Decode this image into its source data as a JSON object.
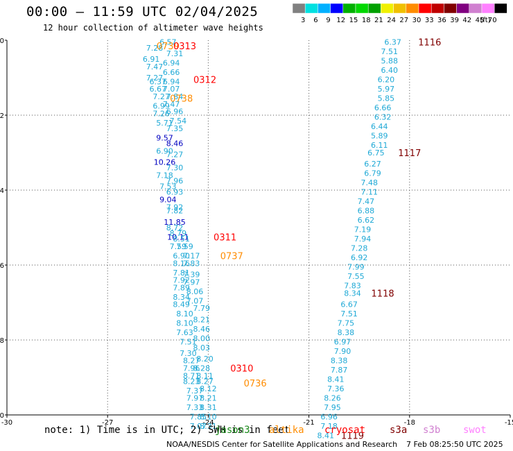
{
  "header": {
    "title": "00:00 — 11:59 UTC 02/04/2025",
    "subtitle": "12 hour collection of altimeter wave heights"
  },
  "colorbar": {
    "colors": [
      "#808080",
      "#00e0e0",
      "#00b0ff",
      "#0000ff",
      "#00b000",
      "#00d800",
      "#00a000",
      "#f0f000",
      "#f0c000",
      "#ff8c00",
      "#ff0000",
      "#c00000",
      "#800000",
      "#800080",
      "#d080d0",
      "#ff80ff",
      "#000000"
    ],
    "labels": [
      "3",
      "6",
      "9",
      "12",
      "15",
      "18",
      "21",
      "24",
      "27",
      "30",
      "33",
      "36",
      "39",
      "42",
      "45",
      "70",
      "(ft)"
    ]
  },
  "chart_data": {
    "type": "scatter",
    "xlabel": "",
    "ylabel": "",
    "xlim": [
      -30,
      -15
    ],
    "ylim": [
      -10,
      0
    ],
    "xticks": [
      "-30",
      "-27",
      "-24",
      "-21",
      "-18",
      "-15"
    ],
    "yticks": [
      "0",
      "-2",
      "-4",
      "-6",
      "-8",
      "-10"
    ],
    "grid": true,
    "tracks": [
      {
        "label": "0739",
        "x": -25.2,
        "y": -0.15,
        "label_color": "#ff8c00",
        "points": [
          {
            "x": -25.2,
            "y": -0.05,
            "v": "6.57"
          },
          {
            "x": -25.6,
            "y": -0.2,
            "v": "7.28"
          },
          {
            "x": -25.0,
            "y": -0.35,
            "v": "7.31"
          },
          {
            "x": -25.7,
            "y": -0.5,
            "v": "6.91"
          },
          {
            "x": -25.1,
            "y": -0.6,
            "v": "6.94"
          },
          {
            "x": -25.6,
            "y": -0.7,
            "v": "7.47"
          },
          {
            "x": -25.1,
            "y": -0.85,
            "v": "6.66"
          },
          {
            "x": -25.6,
            "y": -1.0,
            "v": "7.27"
          }
        ]
      },
      {
        "label": "0313",
        "x": -24.7,
        "y": -0.15,
        "label_color": "#ff0000",
        "points": []
      },
      {
        "label": "0312",
        "x": -24.1,
        "y": -1.05,
        "label_color": "#ff0000",
        "points": [
          {
            "x": -25.5,
            "y": -1.1,
            "v": "6.37"
          },
          {
            "x": -25.1,
            "y": -1.1,
            "v": "6.94"
          },
          {
            "x": -25.5,
            "y": -1.3,
            "v": "6.67"
          },
          {
            "x": -25.1,
            "y": -1.3,
            "v": "7.07"
          }
        ]
      },
      {
        "label": "0738",
        "x": -24.8,
        "y": -1.55,
        "label_color": "#ff8c00",
        "points": [
          {
            "x": -25.4,
            "y": -1.5,
            "v": "7.27"
          },
          {
            "x": -25.0,
            "y": -1.5,
            "v": "7.84"
          },
          {
            "x": -25.4,
            "y": -1.75,
            "v": "6.99"
          },
          {
            "x": -25.1,
            "y": -1.7,
            "v": "7.47"
          },
          {
            "x": -25.4,
            "y": -1.95,
            "v": "7.26"
          },
          {
            "x": -25.0,
            "y": -1.9,
            "v": "6.96"
          },
          {
            "x": -25.3,
            "y": -2.2,
            "v": "5.71"
          },
          {
            "x": -24.9,
            "y": -2.15,
            "v": "7.54"
          },
          {
            "x": -25.0,
            "y": -2.35,
            "v": "7.35"
          },
          {
            "x": -25.3,
            "y": -2.6,
            "v": "9.57",
            "c": "#0000c0"
          },
          {
            "x": -25.0,
            "y": -2.75,
            "v": "8.46",
            "c": "#0000c0"
          },
          {
            "x": -25.3,
            "y": -2.95,
            "v": "6.90"
          },
          {
            "x": -25.0,
            "y": -3.05,
            "v": "7.27"
          },
          {
            "x": -25.3,
            "y": -3.25,
            "v": "10.26",
            "c": "#0000c0"
          },
          {
            "x": -25.0,
            "y": -3.4,
            "v": "7.30"
          },
          {
            "x": -25.3,
            "y": -3.6,
            "v": "7.18"
          },
          {
            "x": -25.0,
            "y": -3.75,
            "v": "7.96"
          },
          {
            "x": -25.2,
            "y": -3.9,
            "v": "7.53"
          },
          {
            "x": -25.0,
            "y": -4.05,
            "v": "6.93"
          },
          {
            "x": -25.2,
            "y": -4.25,
            "v": "9.04",
            "c": "#0000c0"
          },
          {
            "x": -25.0,
            "y": -4.45,
            "v": "7.92"
          },
          {
            "x": -25.0,
            "y": -4.55,
            "v": "7.82"
          },
          {
            "x": -25.0,
            "y": -4.85,
            "v": "11.85",
            "c": "#0000c0"
          },
          {
            "x": -25.0,
            "y": -5.0,
            "v": "8.72"
          },
          {
            "x": -24.9,
            "y": -5.15,
            "v": "8.79"
          }
        ]
      },
      {
        "label": "0311",
        "x": -23.5,
        "y": -5.25,
        "label_color": "#ff0000",
        "points": [
          {
            "x": -24.9,
            "y": -5.25,
            "v": "10.11",
            "c": "#0000c0"
          },
          {
            "x": -24.8,
            "y": -5.3,
            "v": "8.51"
          },
          {
            "x": -24.9,
            "y": -5.5,
            "v": "7.59"
          },
          {
            "x": -24.7,
            "y": -5.5,
            "v": "7.59"
          }
        ]
      },
      {
        "label": "0737",
        "x": -23.3,
        "y": -5.75,
        "label_color": "#ff8c00",
        "points": [
          {
            "x": -24.8,
            "y": -5.75,
            "v": "6.90"
          },
          {
            "x": -24.5,
            "y": -5.75,
            "v": "7.17"
          },
          {
            "x": -24.8,
            "y": -5.95,
            "v": "8.16"
          },
          {
            "x": -24.5,
            "y": -5.95,
            "v": "7.83"
          },
          {
            "x": -24.8,
            "y": -6.2,
            "v": "7.81"
          },
          {
            "x": -24.5,
            "y": -6.25,
            "v": "7.39"
          },
          {
            "x": -24.8,
            "y": -6.4,
            "v": "7.92"
          },
          {
            "x": -24.5,
            "y": -6.45,
            "v": "7.97"
          },
          {
            "x": -24.8,
            "y": -6.6,
            "v": "7.89"
          },
          {
            "x": -24.4,
            "y": -6.7,
            "v": "8.06"
          },
          {
            "x": -24.8,
            "y": -6.85,
            "v": "8.34"
          },
          {
            "x": -24.4,
            "y": -6.95,
            "v": "7.07"
          },
          {
            "x": -24.8,
            "y": -7.05,
            "v": "8.49"
          },
          {
            "x": -24.2,
            "y": -7.15,
            "v": "7.79"
          },
          {
            "x": -24.7,
            "y": -7.3,
            "v": "8.10"
          },
          {
            "x": -24.2,
            "y": -7.45,
            "v": "8.21"
          },
          {
            "x": -24.7,
            "y": -7.55,
            "v": "8.10"
          },
          {
            "x": -24.2,
            "y": -7.7,
            "v": "8.46"
          },
          {
            "x": -24.7,
            "y": -7.8,
            "v": "7.63"
          },
          {
            "x": -24.2,
            "y": -7.95,
            "v": "8.00"
          },
          {
            "x": -24.6,
            "y": -8.05,
            "v": "7.51"
          },
          {
            "x": -24.2,
            "y": -8.2,
            "v": "8.03"
          },
          {
            "x": -24.6,
            "y": -8.35,
            "v": "7.30"
          },
          {
            "x": -24.1,
            "y": -8.5,
            "v": "8.20"
          },
          {
            "x": -24.5,
            "y": -8.55,
            "v": "8.27"
          }
        ]
      },
      {
        "label": "0310",
        "x": -23.0,
        "y": -8.75,
        "label_color": "#ff0000",
        "points": [
          {
            "x": -24.5,
            "y": -8.75,
            "v": "7.96"
          },
          {
            "x": -24.2,
            "y": -8.75,
            "v": "8.28"
          },
          {
            "x": -24.5,
            "y": -8.95,
            "v": "8.71"
          },
          {
            "x": -24.1,
            "y": -8.95,
            "v": "8.11"
          },
          {
            "x": -24.5,
            "y": -9.1,
            "v": "8.23"
          },
          {
            "x": -24.1,
            "y": -9.1,
            "v": "8.27"
          }
        ]
      },
      {
        "label": "0736",
        "x": -22.6,
        "y": -9.15,
        "label_color": "#ff8c00",
        "points": [
          {
            "x": -24.4,
            "y": -9.35,
            "v": "7.37"
          },
          {
            "x": -24.0,
            "y": -9.3,
            "v": "8.12"
          },
          {
            "x": -24.4,
            "y": -9.55,
            "v": "7.97"
          },
          {
            "x": -24.0,
            "y": -9.55,
            "v": "8.21"
          },
          {
            "x": -24.4,
            "y": -9.8,
            "v": "7.33"
          },
          {
            "x": -24.0,
            "y": -9.8,
            "v": "8.31"
          },
          {
            "x": -24.3,
            "y": -10.05,
            "v": "7.85"
          },
          {
            "x": -24.0,
            "y": -10.05,
            "v": "8.10"
          },
          {
            "x": -24.3,
            "y": -10.3,
            "v": "7.07"
          },
          {
            "x": -24.0,
            "y": -10.3,
            "v": "8.31"
          }
        ]
      },
      {
        "label": "1116",
        "x": -17.4,
        "y": -0.05,
        "label_color": "#800000",
        "points": [
          {
            "x": -18.5,
            "y": -0.05,
            "v": "6.37"
          },
          {
            "x": -18.6,
            "y": -0.3,
            "v": "7.51"
          },
          {
            "x": -18.6,
            "y": -0.55,
            "v": "5.88"
          },
          {
            "x": -18.6,
            "y": -0.8,
            "v": "6.40"
          },
          {
            "x": -18.7,
            "y": -1.05,
            "v": "6.20"
          },
          {
            "x": -18.7,
            "y": -1.3,
            "v": "5.97"
          },
          {
            "x": -18.7,
            "y": -1.55,
            "v": "5.85"
          },
          {
            "x": -18.8,
            "y": -1.8,
            "v": "6.66"
          },
          {
            "x": -18.8,
            "y": -2.05,
            "v": "6.32"
          },
          {
            "x": -18.9,
            "y": -2.3,
            "v": "6.44"
          },
          {
            "x": -18.9,
            "y": -2.55,
            "v": "5.89"
          },
          {
            "x": -18.9,
            "y": -2.8,
            "v": "6.11"
          }
        ]
      },
      {
        "label": "1117",
        "x": -18.0,
        "y": -3.0,
        "label_color": "#800000",
        "points": [
          {
            "x": -19.0,
            "y": -3.0,
            "v": "6.75"
          },
          {
            "x": -19.1,
            "y": -3.3,
            "v": "6.27"
          },
          {
            "x": -19.1,
            "y": -3.55,
            "v": "6.79"
          },
          {
            "x": -19.2,
            "y": -3.8,
            "v": "7.48"
          },
          {
            "x": -19.2,
            "y": -4.05,
            "v": "7.11"
          },
          {
            "x": -19.3,
            "y": -4.3,
            "v": "7.47"
          },
          {
            "x": -19.3,
            "y": -4.55,
            "v": "6.88"
          },
          {
            "x": -19.3,
            "y": -4.8,
            "v": "6.62"
          },
          {
            "x": -19.4,
            "y": -5.05,
            "v": "7.19"
          },
          {
            "x": -19.4,
            "y": -5.3,
            "v": "7.94"
          },
          {
            "x": -19.5,
            "y": -5.55,
            "v": "7.28"
          },
          {
            "x": -19.5,
            "y": -5.8,
            "v": "6.92"
          },
          {
            "x": -19.6,
            "y": -6.05,
            "v": "7.99"
          },
          {
            "x": -19.6,
            "y": -6.3,
            "v": "7.55"
          },
          {
            "x": -19.7,
            "y": -6.55,
            "v": "7.83"
          }
        ]
      },
      {
        "label": "1118",
        "x": -18.8,
        "y": -6.75,
        "label_color": "#800000",
        "points": [
          {
            "x": -19.7,
            "y": -6.75,
            "v": "8.34"
          },
          {
            "x": -19.8,
            "y": -7.05,
            "v": "6.67"
          },
          {
            "x": -19.8,
            "y": -7.3,
            "v": "7.51"
          },
          {
            "x": -19.9,
            "y": -7.55,
            "v": "7.75"
          },
          {
            "x": -19.9,
            "y": -7.8,
            "v": "8.38"
          },
          {
            "x": -20.0,
            "y": -8.05,
            "v": "6.97"
          },
          {
            "x": -20.0,
            "y": -8.3,
            "v": "7.90"
          },
          {
            "x": -20.1,
            "y": -8.55,
            "v": "8.38"
          },
          {
            "x": -20.1,
            "y": -8.8,
            "v": "7.87"
          },
          {
            "x": -20.2,
            "y": -9.05,
            "v": "8.41"
          },
          {
            "x": -20.2,
            "y": -9.3,
            "v": "7.36"
          },
          {
            "x": -20.3,
            "y": -9.55,
            "v": "8.26"
          },
          {
            "x": -20.3,
            "y": -9.8,
            "v": "7.95"
          },
          {
            "x": -20.4,
            "y": -10.05,
            "v": "6.96"
          },
          {
            "x": -20.4,
            "y": -10.3,
            "v": "7.18"
          },
          {
            "x": -20.5,
            "y": -10.55,
            "v": "8.41"
          }
        ]
      },
      {
        "label": "1119",
        "x": -19.7,
        "y": -10.55,
        "label_color": "#800000",
        "points": []
      }
    ]
  },
  "note": {
    "text": "note: 1) Time is in UTC; 2) SWH is in feet",
    "satellites": [
      {
        "name": "jason3",
        "color": "#1a8a1a"
      },
      {
        "name": "altika",
        "color": "#ff8c00"
      },
      {
        "name": "cryosat",
        "color": "#ff0000"
      },
      {
        "name": "s3a",
        "color": "#800000"
      },
      {
        "name": "s3b",
        "color": "#d080d0"
      },
      {
        "name": "swot",
        "color": "#ff80ff"
      }
    ]
  },
  "footer": {
    "credit": "NOAA/NESDIS Center for Satellite Applications and Research",
    "timestamp": "7 Feb 08:25:50 UTC 2025"
  },
  "style": {
    "point_color": "#1fa9d6"
  }
}
